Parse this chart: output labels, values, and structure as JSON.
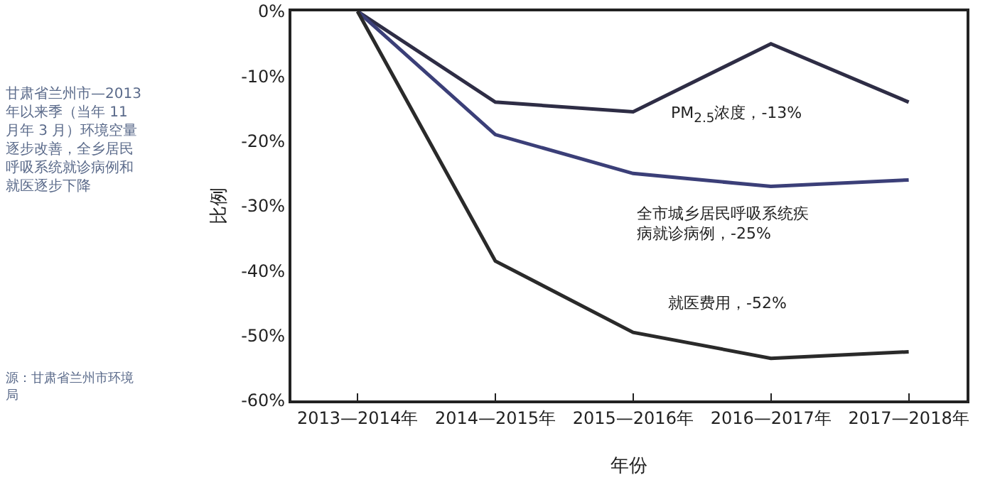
{
  "chart_data": {
    "type": "line",
    "xlabel": "年份",
    "ylabel": "比例",
    "categories": [
      "2013—2014年",
      "2014—2015年",
      "2015—2016年",
      "2016—2017年",
      "2017—2018年"
    ],
    "series": [
      {
        "color": "#2e2d45",
        "values": [
          0,
          -14,
          -15.5,
          -5,
          -14
        ]
      },
      {
        "color": "#3b3f78",
        "values": [
          0,
          -19,
          -25,
          -27,
          -26
        ]
      },
      {
        "color": "#2a2a2a",
        "values": [
          0,
          -38.5,
          -49.5,
          -53.5,
          -52.5
        ]
      }
    ],
    "ylim": [
      -60,
      0
    ],
    "yticks": [
      {
        "value": -60,
        "label": "-60%"
      },
      {
        "value": -50,
        "label": "-50%"
      },
      {
        "value": -40,
        "label": "-40%"
      },
      {
        "value": -30,
        "label": "-30%"
      },
      {
        "value": -20,
        "label": "-20%"
      },
      {
        "value": -10,
        "label": "-10%"
      },
      {
        "value": 0,
        "label": "0%"
      }
    ],
    "grid": false,
    "marker": "none",
    "line_style": "solid",
    "annotations": [
      "PM$_{2.5}$浓度，-13%",
      "全市城乡居民呼吸系统疾病就诊病例，-25%",
      "就医费用，-52%",
      "甘肃省兰州市—2013 年以来季（当年 11 月年 3 月）环境空量逐步改善，全乡居民呼吸系统就诊病例和就医逐步下降",
      "源：甘肃省兰州市环境局"
    ]
  }
}
